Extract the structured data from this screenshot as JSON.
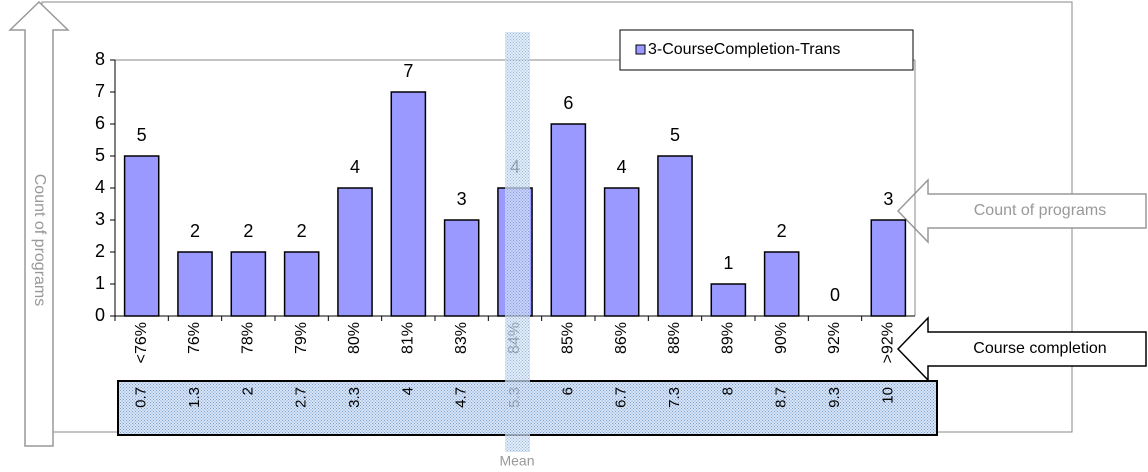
{
  "chart_data": {
    "type": "bar",
    "categories": [
      "<76%",
      "76%",
      "78%",
      "79%",
      "80%",
      "81%",
      "83%",
      "84%",
      "85%",
      "86%",
      "88%",
      "89%",
      "90%",
      "92%",
      ">92%"
    ],
    "secondary_categories": [
      "0.7",
      "1.3",
      "2",
      "2.7",
      "3.3",
      "4",
      "4.7",
      "5.3",
      "6",
      "6.7",
      "7.3",
      "8",
      "8.7",
      "9.3",
      "10"
    ],
    "series": [
      {
        "name": "3-CourseCompletion-Trans",
        "color": "#9999ff",
        "values": [
          5,
          2,
          2,
          2,
          4,
          7,
          3,
          4,
          6,
          4,
          5,
          1,
          2,
          0,
          3
        ]
      }
    ],
    "ylim": [
      0,
      8
    ],
    "yticks": [
      0,
      1,
      2,
      3,
      4,
      5,
      6,
      7,
      8
    ],
    "legend": "top-right",
    "annotations": {
      "y_axis_arrow": "Count of programs",
      "bar_arrow": "Count of programs",
      "x_axis_arrow": "Course completion",
      "mean": "Mean"
    }
  }
}
